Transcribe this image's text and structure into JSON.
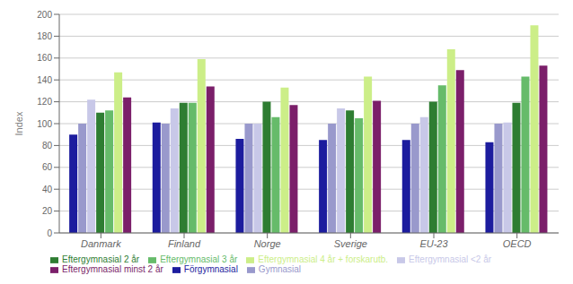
{
  "chart_data": {
    "type": "bar",
    "ylabel": "Index",
    "categories": [
      "Danmark",
      "Finland",
      "Norge",
      "Sverige",
      "EU-23",
      "OECD"
    ],
    "series": [
      {
        "name": "Förgymnasial",
        "color": "#1C1C9E",
        "values": [
          90,
          101,
          86,
          85,
          85,
          83
        ]
      },
      {
        "name": "Gymnasial",
        "color": "#9999CC",
        "values": [
          100,
          100,
          100,
          100,
          100,
          100
        ]
      },
      {
        "name": "Eftergymnasial <2 år",
        "color": "#C8C8E8",
        "values": [
          122,
          114,
          100,
          114,
          106,
          101
        ]
      },
      {
        "name": "Eftergymnasial 2 år",
        "color": "#2E7D32",
        "values": [
          110,
          119,
          120,
          112,
          120,
          119
        ]
      },
      {
        "name": "Eftergymnasial 3 år",
        "color": "#66BB6A",
        "values": [
          112,
          119,
          106,
          105,
          135,
          143
        ]
      },
      {
        "name": "Eftergymnasial 4 år + forskarutb.",
        "color": "#CCEE88",
        "values": [
          147,
          159,
          133,
          143,
          168,
          190
        ]
      },
      {
        "name": "Eftergymnasial minst 2 år",
        "color": "#7B1F6A",
        "values": [
          124,
          134,
          117,
          121,
          149,
          153
        ]
      }
    ],
    "ylim": [
      0,
      200
    ],
    "yticks": [
      0,
      20,
      40,
      60,
      80,
      100,
      120,
      140,
      160,
      180,
      200
    ],
    "grid": true,
    "legend": "bottom"
  }
}
